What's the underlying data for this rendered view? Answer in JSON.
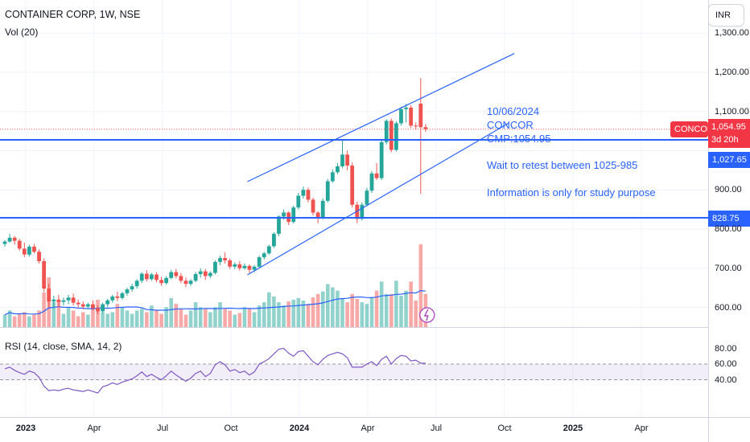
{
  "header": {
    "title": "CONTAINER CORP, 1W, NSE",
    "volume_label": "Vol (20)",
    "rsi_label": "RSI (14, close, SMA, 14, 2)",
    "currency": "INR"
  },
  "annotation": {
    "date": "10/06/2024",
    "symbol": "CONCOR",
    "cmp": "CMP:1054.95",
    "line1": "Wait to retest between 1025-985",
    "line2": "Information is only for study purpose"
  },
  "tags": {
    "ticker": "CONCOR",
    "last_price": "1,054.95",
    "countdown": "3d 20h",
    "level_upper": "1,027.65",
    "level_lower": "828.75"
  },
  "colors": {
    "up": "#26a69a",
    "down": "#ef5350",
    "line": "#2962ff",
    "rsi_line": "#7e57c2",
    "volume_ma": "#2962ff"
  },
  "chart_data": {
    "type": "candlestick",
    "title": "CONTAINER CORP, 1W, NSE",
    "price_ticks": [
      "1,300.00",
      "1,200.00",
      "1,100.00",
      "900.00",
      "800.00",
      "700.00",
      "600.00"
    ],
    "rsi_ticks": [
      "80.00",
      "60.00",
      "40.00"
    ],
    "x_ticks": [
      {
        "label": "2023",
        "year": true
      },
      {
        "label": "Apr",
        "year": false
      },
      {
        "label": "Jul",
        "year": false
      },
      {
        "label": "Oct",
        "year": false
      },
      {
        "label": "2024",
        "year": true
      },
      {
        "label": "Apr",
        "year": false
      },
      {
        "label": "Jul",
        "year": false
      },
      {
        "label": "Oct",
        "year": false
      },
      {
        "label": "2025",
        "year": true
      },
      {
        "label": "Apr",
        "year": false
      }
    ],
    "horizontal_levels": [
      1027.65,
      828.75
    ],
    "channel": {
      "upper": [
        {
          "date": "2023-10-23",
          "price": 921
        },
        {
          "date": "2024-10-14",
          "price": 1248
        }
      ],
      "lower": [
        {
          "date": "2023-10-23",
          "price": 683
        },
        {
          "date": "2024-10-07",
          "price": 1071
        }
      ]
    },
    "candles": [
      {
        "o": 762,
        "h": 772,
        "c": 768,
        "l": 755
      },
      {
        "o": 768,
        "h": 788,
        "c": 778,
        "l": 765
      },
      {
        "o": 778,
        "h": 782,
        "c": 770,
        "l": 760
      },
      {
        "o": 770,
        "h": 775,
        "c": 750,
        "l": 745
      },
      {
        "o": 750,
        "h": 765,
        "c": 735,
        "l": 728
      },
      {
        "o": 735,
        "h": 760,
        "c": 755,
        "l": 730
      },
      {
        "o": 755,
        "h": 762,
        "c": 742,
        "l": 738
      },
      {
        "o": 742,
        "h": 748,
        "c": 718,
        "l": 712
      },
      {
        "o": 718,
        "h": 725,
        "c": 648,
        "l": 640
      },
      {
        "o": 648,
        "h": 660,
        "c": 615,
        "l": 600
      },
      {
        "o": 615,
        "h": 630,
        "c": 620,
        "l": 598
      },
      {
        "o": 620,
        "h": 632,
        "c": 614,
        "l": 600
      },
      {
        "o": 614,
        "h": 625,
        "c": 618,
        "l": 605
      },
      {
        "o": 618,
        "h": 632,
        "c": 625,
        "l": 608
      },
      {
        "o": 625,
        "h": 635,
        "c": 612,
        "l": 605
      },
      {
        "o": 612,
        "h": 620,
        "c": 608,
        "l": 600
      },
      {
        "o": 608,
        "h": 615,
        "c": 602,
        "l": 595
      },
      {
        "o": 602,
        "h": 612,
        "c": 608,
        "l": 596
      },
      {
        "o": 608,
        "h": 618,
        "c": 598,
        "l": 592
      },
      {
        "o": 598,
        "h": 605,
        "c": 590,
        "l": 583
      },
      {
        "o": 590,
        "h": 612,
        "c": 608,
        "l": 586
      },
      {
        "o": 608,
        "h": 622,
        "c": 618,
        "l": 600
      },
      {
        "o": 618,
        "h": 632,
        "c": 628,
        "l": 612
      },
      {
        "o": 628,
        "h": 640,
        "c": 624,
        "l": 616
      },
      {
        "o": 624,
        "h": 640,
        "c": 636,
        "l": 620
      },
      {
        "o": 636,
        "h": 650,
        "c": 646,
        "l": 630
      },
      {
        "o": 646,
        "h": 660,
        "c": 654,
        "l": 640
      },
      {
        "o": 654,
        "h": 672,
        "c": 668,
        "l": 648
      },
      {
        "o": 668,
        "h": 690,
        "c": 686,
        "l": 662
      },
      {
        "o": 686,
        "h": 695,
        "c": 672,
        "l": 666
      },
      {
        "o": 672,
        "h": 688,
        "c": 684,
        "l": 668
      },
      {
        "o": 684,
        "h": 690,
        "c": 670,
        "l": 664
      },
      {
        "o": 670,
        "h": 678,
        "c": 662,
        "l": 655
      },
      {
        "o": 662,
        "h": 680,
        "c": 675,
        "l": 658
      },
      {
        "o": 675,
        "h": 696,
        "c": 690,
        "l": 672
      },
      {
        "o": 690,
        "h": 698,
        "c": 680,
        "l": 674
      },
      {
        "o": 680,
        "h": 688,
        "c": 668,
        "l": 662
      },
      {
        "o": 668,
        "h": 676,
        "c": 660,
        "l": 652
      },
      {
        "o": 660,
        "h": 672,
        "c": 668,
        "l": 655
      },
      {
        "o": 668,
        "h": 690,
        "c": 685,
        "l": 664
      },
      {
        "o": 685,
        "h": 700,
        "c": 692,
        "l": 676
      },
      {
        "o": 692,
        "h": 698,
        "c": 680,
        "l": 670
      },
      {
        "o": 680,
        "h": 692,
        "c": 688,
        "l": 674
      },
      {
        "o": 688,
        "h": 720,
        "c": 716,
        "l": 684
      },
      {
        "o": 716,
        "h": 732,
        "c": 726,
        "l": 708
      },
      {
        "o": 726,
        "h": 740,
        "c": 720,
        "l": 712
      },
      {
        "o": 720,
        "h": 725,
        "c": 704,
        "l": 698
      },
      {
        "o": 704,
        "h": 715,
        "c": 710,
        "l": 698
      },
      {
        "o": 710,
        "h": 718,
        "c": 700,
        "l": 694
      },
      {
        "o": 700,
        "h": 712,
        "c": 706,
        "l": 696
      },
      {
        "o": 706,
        "h": 710,
        "c": 696,
        "l": 688
      },
      {
        "o": 696,
        "h": 708,
        "c": 704,
        "l": 690
      },
      {
        "o": 704,
        "h": 732,
        "c": 728,
        "l": 700
      },
      {
        "o": 728,
        "h": 742,
        "c": 738,
        "l": 722
      },
      {
        "o": 738,
        "h": 760,
        "c": 756,
        "l": 734
      },
      {
        "o": 756,
        "h": 792,
        "c": 788,
        "l": 752
      },
      {
        "o": 788,
        "h": 835,
        "c": 832,
        "l": 782
      },
      {
        "o": 832,
        "h": 850,
        "c": 842,
        "l": 824
      },
      {
        "o": 842,
        "h": 845,
        "c": 818,
        "l": 810
      },
      {
        "o": 818,
        "h": 860,
        "c": 855,
        "l": 814
      },
      {
        "o": 855,
        "h": 892,
        "c": 885,
        "l": 850
      },
      {
        "o": 885,
        "h": 908,
        "c": 900,
        "l": 878
      },
      {
        "o": 900,
        "h": 906,
        "c": 875,
        "l": 868
      },
      {
        "o": 875,
        "h": 880,
        "c": 842,
        "l": 835
      },
      {
        "o": 842,
        "h": 845,
        "c": 830,
        "l": 815
      },
      {
        "o": 830,
        "h": 878,
        "c": 872,
        "l": 825
      },
      {
        "o": 872,
        "h": 928,
        "c": 922,
        "l": 868
      },
      {
        "o": 922,
        "h": 952,
        "c": 945,
        "l": 918
      },
      {
        "o": 945,
        "h": 968,
        "c": 960,
        "l": 940
      },
      {
        "o": 960,
        "h": 1028,
        "c": 990,
        "l": 955
      },
      {
        "o": 990,
        "h": 1000,
        "c": 962,
        "l": 950
      },
      {
        "o": 962,
        "h": 970,
        "c": 862,
        "l": 855
      },
      {
        "o": 862,
        "h": 870,
        "c": 826,
        "l": 815
      },
      {
        "o": 826,
        "h": 868,
        "c": 862,
        "l": 822
      },
      {
        "o": 862,
        "h": 905,
        "c": 898,
        "l": 858
      },
      {
        "o": 898,
        "h": 948,
        "c": 942,
        "l": 892
      },
      {
        "o": 942,
        "h": 968,
        "c": 930,
        "l": 925
      },
      {
        "o": 930,
        "h": 1028,
        "c": 1022,
        "l": 925
      },
      {
        "o": 1022,
        "h": 1080,
        "c": 1076,
        "l": 1016
      },
      {
        "o": 1076,
        "h": 1082,
        "c": 1002,
        "l": 996
      },
      {
        "o": 1002,
        "h": 1075,
        "c": 1070,
        "l": 998
      },
      {
        "o": 1070,
        "h": 1112,
        "c": 1106,
        "l": 1064
      },
      {
        "o": 1106,
        "h": 1120,
        "c": 1110,
        "l": 1072
      },
      {
        "o": 1110,
        "h": 1116,
        "c": 1064,
        "l": 1058
      },
      {
        "o": 1064,
        "h": 1072,
        "c": 1062,
        "l": 1054
      },
      {
        "o": 1120,
        "h": 1185,
        "c": 1060,
        "l": 890
      },
      {
        "o": 1060,
        "h": 1068,
        "c": 1055,
        "l": 1048
      }
    ],
    "volumes": [
      0.15,
      0.2,
      0.13,
      0.16,
      0.18,
      0.13,
      0.15,
      0.2,
      0.42,
      0.6,
      0.3,
      0.33,
      0.16,
      0.24,
      0.2,
      0.13,
      0.18,
      0.15,
      0.22,
      0.33,
      0.18,
      0.16,
      0.18,
      0.28,
      0.24,
      0.2,
      0.16,
      0.2,
      0.22,
      0.18,
      0.26,
      0.2,
      0.16,
      0.24,
      0.35,
      0.28,
      0.22,
      0.15,
      0.2,
      0.3,
      0.24,
      0.22,
      0.18,
      0.24,
      0.3,
      0.22,
      0.2,
      0.15,
      0.17,
      0.24,
      0.22,
      0.18,
      0.26,
      0.3,
      0.42,
      0.37,
      0.3,
      0.26,
      0.31,
      0.33,
      0.35,
      0.32,
      0.28,
      0.36,
      0.4,
      0.43,
      0.52,
      0.48,
      0.44,
      0.35,
      0.3,
      0.4,
      0.34,
      0.3,
      0.28,
      0.36,
      0.44,
      0.55,
      0.4,
      0.4,
      0.56,
      0.38,
      0.44,
      0.55,
      0.32,
      1.0,
      0.4
    ],
    "rsi": [
      54,
      56,
      52,
      49,
      47,
      51,
      49,
      43,
      32,
      26,
      27,
      26,
      28,
      29,
      27,
      26,
      25,
      27,
      25,
      23,
      31,
      33,
      36,
      34,
      37,
      39,
      41,
      45,
      50,
      44,
      47,
      43,
      40,
      45,
      51,
      46,
      42,
      38,
      42,
      48,
      51,
      44,
      48,
      59,
      63,
      59,
      51,
      53,
      49,
      51,
      46,
      50,
      60,
      63,
      67,
      73,
      79,
      80,
      74,
      70,
      76,
      77,
      70,
      63,
      59,
      66,
      71,
      73,
      75,
      73,
      68,
      56,
      56,
      56,
      60,
      63,
      58,
      66,
      70,
      60,
      67,
      71,
      70,
      64,
      65,
      61,
      61
    ],
    "rsi_ma": [
      53,
      53,
      53,
      52,
      52,
      52,
      51,
      49,
      45,
      43,
      41,
      39,
      38,
      37,
      36,
      35,
      35,
      34,
      33,
      32,
      32,
      33,
      32,
      32,
      33,
      33,
      35,
      37,
      39,
      40,
      42,
      42,
      43,
      43,
      44,
      45,
      45,
      45,
      45,
      46,
      47,
      47,
      47,
      48,
      50,
      52,
      52,
      53,
      52,
      52,
      52,
      52,
      52,
      54,
      56,
      58,
      61,
      63,
      65,
      67,
      69,
      70,
      70,
      70,
      68,
      66,
      66,
      66,
      68,
      69,
      68,
      67,
      65,
      64,
      63,
      62,
      60,
      61,
      62,
      62,
      63,
      64,
      66,
      66,
      65,
      64,
      64
    ]
  }
}
